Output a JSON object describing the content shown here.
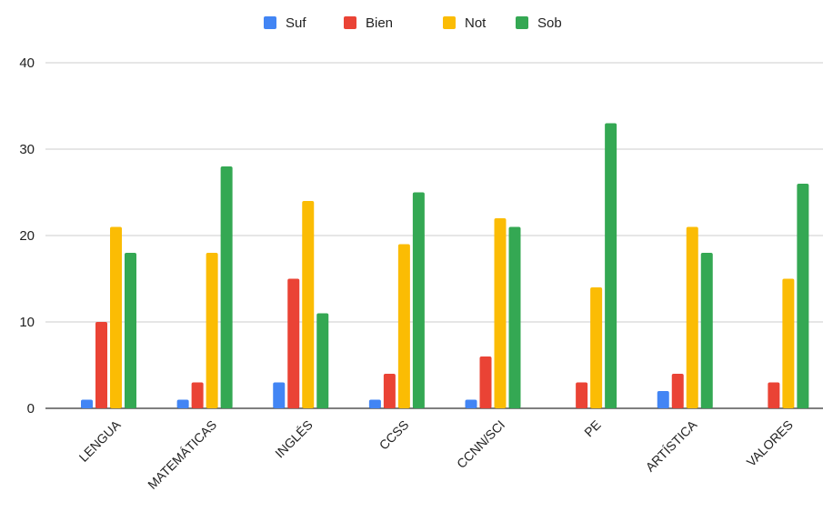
{
  "chart_data": {
    "type": "bar",
    "categories": [
      "LENGUA",
      "MATEMÁTICAS",
      "INGLÉS",
      "CCSS",
      "CCNN/SCI",
      "PE",
      "ARTÍSTICA",
      "VALORES"
    ],
    "series": [
      {
        "name": "Suf",
        "color": "#4285F4",
        "values": [
          1,
          1,
          3,
          1,
          1,
          0,
          2,
          0
        ]
      },
      {
        "name": "Bien",
        "color": "#EA4335",
        "values": [
          10,
          3,
          15,
          4,
          6,
          3,
          4,
          3
        ]
      },
      {
        "name": "Not",
        "color": "#FBBC04",
        "values": [
          21,
          18,
          24,
          19,
          22,
          14,
          21,
          15
        ]
      },
      {
        "name": "Sob",
        "color": "#34A853",
        "values": [
          18,
          28,
          11,
          25,
          21,
          33,
          18,
          26
        ]
      }
    ],
    "ylim": [
      0,
      40
    ],
    "yticks": [
      0,
      10,
      20,
      30,
      40
    ],
    "grid": true,
    "legend_position": "top-center"
  }
}
